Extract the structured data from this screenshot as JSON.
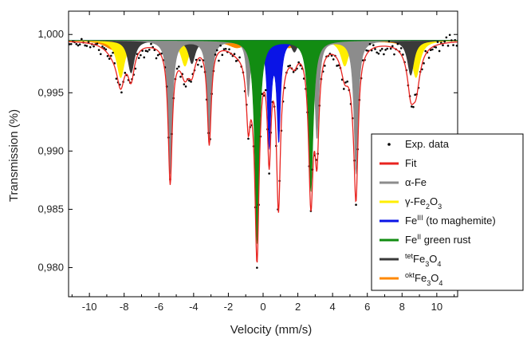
{
  "chart_data": {
    "type": "line",
    "title": "",
    "xlabel": "Velocity (mm/s)",
    "ylabel": "Transmission (%)",
    "xlim": [
      -11.2,
      11.2
    ],
    "ylim": [
      0.9775,
      1.002
    ],
    "x_ticks": [
      -10,
      -8,
      -6,
      -4,
      -2,
      0,
      2,
      4,
      6,
      8,
      10
    ],
    "x_tick_labels": [
      "-10",
      "-8",
      "-6",
      "-4",
      "-2",
      "0",
      "2",
      "4",
      "6",
      "8",
      "10"
    ],
    "y_ticks": [
      1.0,
      0.995,
      0.99,
      0.985,
      0.98
    ],
    "y_tick_labels": [
      "1,000",
      "0,995",
      "0,990",
      "0,985",
      "0,980"
    ],
    "baseline": 0.9995,
    "legend_position": "center-right",
    "legend": [
      {
        "label": "Exp. data",
        "sup": "",
        "rest": "",
        "marker": "dot",
        "color": "#000000"
      },
      {
        "label": "Fit",
        "sup": "",
        "rest": "",
        "marker": "line",
        "color": "#e8231f"
      },
      {
        "label": "α-Fe",
        "sup": "",
        "rest": "",
        "marker": "line",
        "color": "#8c8c8c"
      },
      {
        "label": "γ-Fe",
        "sub": "2",
        "mid": "O",
        "sub2": "3",
        "marker": "line",
        "color": "#ffee00"
      },
      {
        "label": "Fe",
        "sup": "III",
        "rest": " (to maghemite)",
        "marker": "line",
        "color": "#0a14e6"
      },
      {
        "label": "Fe",
        "sup": "II",
        "rest": " green rust",
        "marker": "line",
        "color": "#128c12"
      },
      {
        "label": "Fe",
        "pre_sup": "tet",
        "sub": "3",
        "mid": "O",
        "sub2": "4",
        "marker": "line",
        "color": "#3a3a3a"
      },
      {
        "label": "Fe",
        "pre_sup": "okt",
        "sub": "3",
        "mid": "O",
        "sub2": "4",
        "marker": "line",
        "color": "#ff8800"
      }
    ],
    "components": [
      {
        "name": "okt-Fe3O4",
        "color": "#ff8800",
        "lines": [
          [
            -8.6,
            0.0008,
            1.2
          ],
          [
            -5.0,
            0.0006,
            1.2
          ],
          [
            -1.5,
            0.0006,
            1.2
          ],
          [
            1.5,
            0.0006,
            1.2
          ],
          [
            5.0,
            0.0006,
            1.2
          ],
          [
            8.6,
            0.0008,
            1.2
          ]
        ]
      },
      {
        "name": "gamma-Fe2O3",
        "color": "#ffee00",
        "lines": [
          [
            -8.2,
            0.0032,
            0.55
          ],
          [
            -4.5,
            0.0022,
            0.55
          ],
          [
            -0.9,
            0.001,
            0.5
          ],
          [
            1.1,
            0.001,
            0.5
          ],
          [
            4.7,
            0.0022,
            0.55
          ],
          [
            8.8,
            0.0032,
            0.55
          ]
        ]
      },
      {
        "name": "tet-Fe3O4",
        "color": "#3a3a3a",
        "lines": [
          [
            -7.6,
            0.0028,
            0.45
          ],
          [
            -4.1,
            0.002,
            0.45
          ],
          [
            -0.6,
            0.001,
            0.4
          ],
          [
            1.8,
            0.001,
            0.4
          ],
          [
            5.2,
            0.002,
            0.45
          ],
          [
            8.5,
            0.003,
            0.45
          ]
        ]
      },
      {
        "name": "alpha-Fe",
        "color": "#8c8c8c",
        "lines": [
          [
            -5.35,
            0.0115,
            0.28
          ],
          [
            -3.1,
            0.0085,
            0.28
          ],
          [
            -0.85,
            0.0048,
            0.26
          ],
          [
            0.85,
            0.0048,
            0.26
          ],
          [
            3.1,
            0.0085,
            0.28
          ],
          [
            5.35,
            0.0115,
            0.28
          ]
        ]
      },
      {
        "name": "Fe-III",
        "color": "#0a14e6",
        "lines": [
          [
            0.35,
            0.009,
            0.25
          ],
          [
            0.9,
            0.0085,
            0.25
          ]
        ]
      },
      {
        "name": "Fe-II",
        "color": "#128c12",
        "lines": [
          [
            -0.35,
            0.0175,
            0.3
          ],
          [
            2.75,
            0.013,
            0.32
          ]
        ]
      }
    ],
    "fit": {
      "name": "Fit",
      "color": "#e8231f"
    },
    "exp_data": {
      "name": "Exp. data",
      "color": "#000000",
      "step": 0.1,
      "noise": 0.0004
    }
  }
}
